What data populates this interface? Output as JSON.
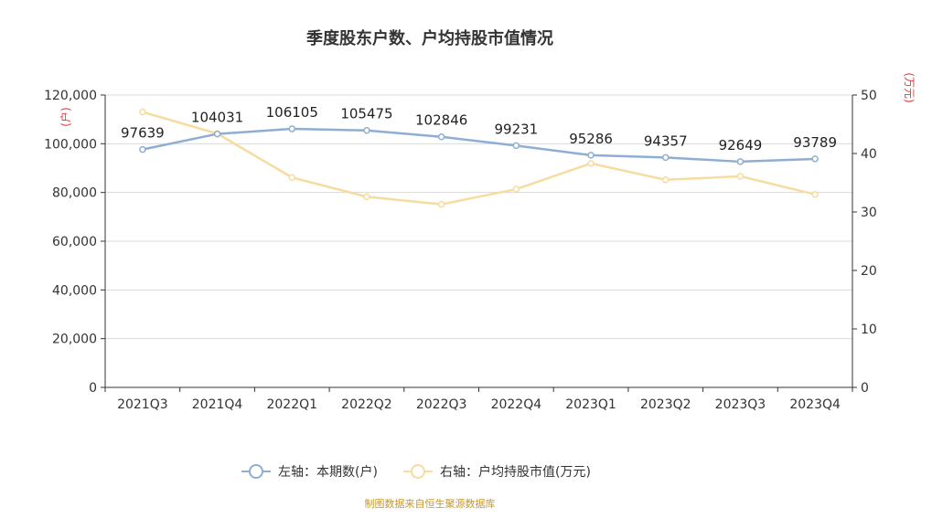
{
  "chart_data": {
    "type": "line",
    "title": "季度股东户数、户均持股市值情况",
    "categories": [
      "2021Q3",
      "2021Q4",
      "2022Q1",
      "2022Q2",
      "2022Q3",
      "2022Q4",
      "2023Q1",
      "2023Q2",
      "2023Q3",
      "2023Q4"
    ],
    "left_axis": {
      "unit_label": "(户)",
      "ylim": [
        0,
        120000
      ],
      "ticks": [
        "0",
        "20,000",
        "40,000",
        "60,000",
        "80,000",
        "100,000",
        "120,000"
      ]
    },
    "right_axis": {
      "unit_label": "(万元)",
      "ylim": [
        0,
        50
      ],
      "ticks": [
        "0",
        "10",
        "20",
        "30",
        "40",
        "50"
      ]
    },
    "series": [
      {
        "name": "左轴：本期数(户)",
        "axis": "left",
        "color": "#8eaed4",
        "values": [
          97639,
          104031,
          106105,
          105475,
          102846,
          99231,
          95286,
          94357,
          92649,
          93789
        ],
        "labels": [
          "97639",
          "104031",
          "106105",
          "105475",
          "102846",
          "99231",
          "95286",
          "94357",
          "92649",
          "93789"
        ]
      },
      {
        "name": "右轴：户均持股市值(万元)",
        "axis": "right",
        "color": "#f7dca0",
        "values": [
          47.1,
          43.4,
          35.9,
          32.6,
          31.3,
          33.9,
          38.3,
          35.5,
          36.1,
          33.0
        ]
      }
    ],
    "grid": true,
    "legend_position": "bottom"
  },
  "footer": {
    "source_text": "制图数据来自恒生聚源数据库"
  }
}
